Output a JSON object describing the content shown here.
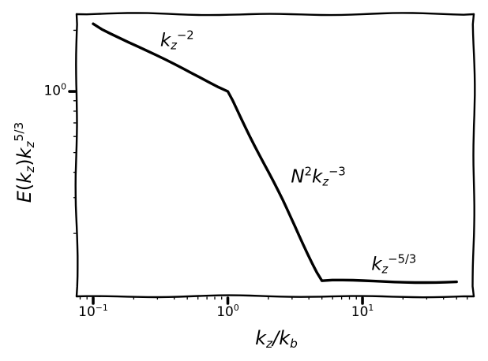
{
  "colors": {
    "ink": "#000000",
    "background": "#ffffff"
  },
  "chart_data": {
    "type": "line",
    "style": "xkcd-hand-drawn, black line on white, log-log axes, full box frame",
    "title": "",
    "xlabel_rich": [
      {
        "t": "k",
        "i": true
      },
      {
        "t": "z",
        "i": true,
        "sub": true
      },
      {
        "t": "/",
        "i": true
      },
      {
        "t": "k",
        "i": true
      },
      {
        "t": "b",
        "i": true,
        "sub": true
      }
    ],
    "ylabel_rich": [
      {
        "t": "E",
        "i": true
      },
      {
        "t": "("
      },
      {
        "t": "k",
        "i": true
      },
      {
        "t": "z",
        "i": true,
        "sub": true
      },
      {
        "t": ")"
      },
      {
        "t": "k",
        "i": true
      },
      {
        "t": "z",
        "i": true,
        "sub": true
      },
      {
        "t": "5/3",
        "sup": true
      }
    ],
    "x_scale": "log",
    "y_scale": "log",
    "xlim": [
      0.0753,
      67.1
    ],
    "ylim": [
      0.098,
      2.401
    ],
    "grid": false,
    "legend": false,
    "x_major_ticks": [
      {
        "value": 0.1,
        "label_rich": [
          {
            "t": "10"
          },
          {
            "t": "−1",
            "sup": true
          }
        ]
      },
      {
        "value": 1.0,
        "label_rich": [
          {
            "t": "10"
          },
          {
            "t": "0",
            "sup": true
          }
        ]
      },
      {
        "value": 10.0,
        "label_rich": [
          {
            "t": "10"
          },
          {
            "t": "1",
            "sup": true
          }
        ]
      }
    ],
    "y_major_ticks": [
      {
        "value": 1.0,
        "label_rich": [
          {
            "t": "10"
          },
          {
            "t": "0",
            "sup": true
          }
        ]
      }
    ],
    "x_minor_ticks": [
      0.08,
      0.09,
      0.2,
      0.3,
      0.4,
      0.5,
      0.6,
      0.7,
      0.8,
      0.9,
      2,
      3,
      4,
      5,
      6,
      7,
      8,
      9,
      20,
      30,
      40,
      50,
      60
    ],
    "y_minor_ticks": [
      0.2,
      0.3,
      0.4,
      0.5,
      0.6,
      0.7,
      0.8,
      0.9,
      2
    ],
    "series": [
      {
        "name": "compensated-energy-spectrum",
        "color": "#000000",
        "points": [
          [
            0.1,
            2.154
          ],
          [
            1.0,
            1.0
          ],
          [
            5.0,
            0.117
          ],
          [
            50.0,
            0.1155
          ]
        ]
      }
    ],
    "annotations": [
      {
        "name": "slope-kz-minus-2",
        "x": 0.42,
        "y": 1.77,
        "rich": [
          {
            "t": "k",
            "i": true
          },
          {
            "t": "z",
            "i": true,
            "sub": true
          },
          {
            "t": "−2",
            "sup": true
          }
        ]
      },
      {
        "name": "slope-N2-kz-minus-3",
        "x": 4.7,
        "y": 0.377,
        "rich": [
          {
            "t": "N",
            "i": true
          },
          {
            "t": "2",
            "sup": true
          },
          {
            "t": "k",
            "i": true
          },
          {
            "t": "z",
            "i": true,
            "sub": true
          },
          {
            "t": "−3",
            "sup": true
          }
        ]
      },
      {
        "name": "slope-kz-minus-5-3",
        "x": 17.1,
        "y": 0.14,
        "rich": [
          {
            "t": "k",
            "i": true
          },
          {
            "t": "z",
            "i": true,
            "sub": true
          },
          {
            "t": "−5/3",
            "sup": true
          }
        ]
      }
    ]
  }
}
